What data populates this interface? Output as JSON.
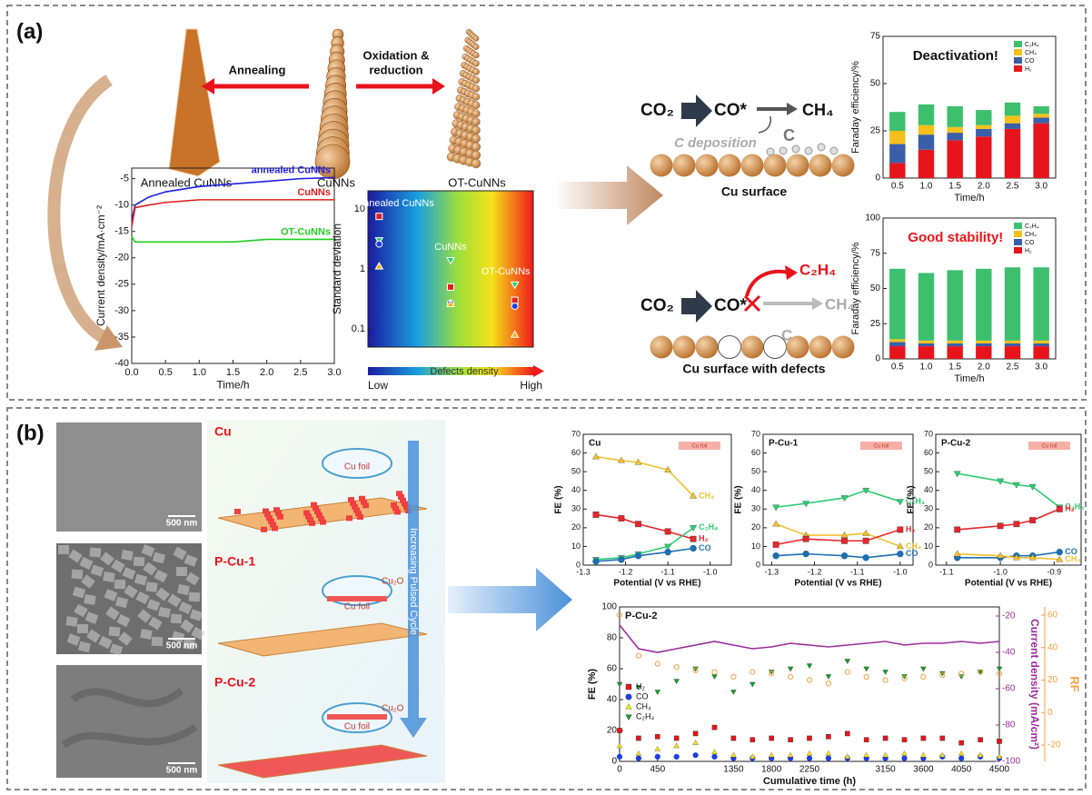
{
  "diagram": {
    "panel_a": "(a)",
    "panel_b": "(b)",
    "annealing": "Annealing",
    "oxidation": [
      "Oxidation &",
      "reduction"
    ],
    "needles": [
      "Annealed CuNNs",
      "CuNNs",
      "OT-CuNNs"
    ],
    "reaction_1": {
      "reactant": "CO₂",
      "intermediate": "CO*",
      "product": "CH₄",
      "deposition": "C deposition",
      "carbon": "C",
      "surface": "Cu surface"
    },
    "reaction_2": {
      "reactant": "CO₂",
      "intermediate": "CO*",
      "product": "C₂H₄",
      "blocked": "CH₄",
      "carbon": "C",
      "surface": "Cu surface with defects"
    },
    "samples": [
      {
        "name": "Cu",
        "scale": "500 nm",
        "foil": "Cu foil"
      },
      {
        "name": "P-Cu-1",
        "scale": "500 nm",
        "foil": "Cu foil",
        "oxide": "Cu₂O"
      },
      {
        "name": "P-Cu-2",
        "scale": "500 nm",
        "foil": "Cu foil",
        "oxide": "Cu₂O"
      }
    ],
    "cycle_arrow": "Increasing Pulsed Cycle"
  },
  "chart_data": [
    {
      "type": "line",
      "x": [
        0,
        0.05,
        0.25,
        0.5,
        1,
        1.5,
        2,
        2.5,
        3
      ],
      "series": [
        {
          "name": "annealed CuNNs",
          "color": "#1f1fe0",
          "values": [
            -13,
            -10,
            -8.5,
            -7.5,
            -6.5,
            -6,
            -5.5,
            -5,
            -4.8
          ]
        },
        {
          "name": "CuNNs",
          "color": "#e01f1f",
          "values": [
            -14,
            -10.5,
            -10,
            -9.5,
            -9,
            -9,
            -9,
            -9,
            -9
          ]
        },
        {
          "name": "OT-CuNNs",
          "color": "#1fd01f",
          "values": [
            -16,
            -17,
            -17,
            -17,
            -17,
            -17,
            -16.5,
            -16.5,
            -16.5
          ]
        }
      ],
      "xlim": [
        0,
        3
      ],
      "xticks": [
        {
          "value": 0,
          "label": "0.0"
        },
        0.5,
        {
          "value": 1,
          "label": "1.0"
        },
        1.5,
        {
          "value": 2,
          "label": "2.0"
        },
        2.5,
        {
          "value": 3,
          "label": "3.0"
        }
      ],
      "ylim": [
        -40,
        -3
      ],
      "yticks": [
        -40,
        -35,
        -30,
        -25,
        -20,
        -15,
        -10,
        -5
      ],
      "x_label": "Time/h",
      "y_label": "Current density/mA·cm⁻²",
      "end_labels": true
    },
    {
      "type": "scatter",
      "categories": [
        "Annealed CuNNs",
        "CuNNs",
        "OT-CuNNs"
      ],
      "log_scale": true,
      "ylim": [
        0.05,
        20
      ],
      "yticks": [
        0.1,
        1,
        10
      ],
      "y_label": "Standard deviation",
      "x_label": "Defects density",
      "x_low": "Low",
      "x_high": "High",
      "series": [
        {
          "marker": "square",
          "color": "#e01f1f",
          "values": [
            7.5,
            0.5,
            0.3
          ]
        },
        {
          "marker": "triangle-down",
          "color": "#2ecc71",
          "values": [
            3,
            1.4,
            0.55
          ]
        },
        {
          "marker": "circle",
          "color": "#1f3fe0",
          "values": [
            2.6,
            0.27,
            0.24
          ]
        },
        {
          "marker": "triangle-up",
          "color": "#f5b21f",
          "values": [
            1.1,
            0.26,
            0.08
          ]
        }
      ]
    },
    {
      "type": "stacked_bar",
      "categories": [
        "0.5",
        "1.0",
        "1.5",
        "2.0",
        "2.5",
        "3.0"
      ],
      "ylim": [
        0,
        75
      ],
      "yticks": [
        0,
        25,
        50,
        75
      ],
      "x_label": "Time/h",
      "y_label": "Faraday efficiency/%",
      "annotation": "Deactivation!",
      "annotation_color": "#111111",
      "legend": "upper right",
      "series": [
        {
          "name": "H₂",
          "color": "#e8141b",
          "values": [
            8,
            15,
            20,
            22,
            26,
            29
          ]
        },
        {
          "name": "CO",
          "color": "#3a5fa8",
          "values": [
            10,
            8,
            4,
            4,
            3,
            3
          ]
        },
        {
          "name": "CH₄",
          "color": "#f5c01a",
          "values": [
            7,
            5,
            3,
            2,
            4,
            2
          ]
        },
        {
          "name": "C₂H₄",
          "color": "#3dbf6e",
          "values": [
            10,
            11,
            11,
            8,
            7,
            4
          ]
        }
      ]
    },
    {
      "type": "stacked_bar",
      "categories": [
        "0.5",
        "1.0",
        "1.5",
        "2.0",
        "2.5",
        "3.0"
      ],
      "ylim": [
        0,
        100
      ],
      "yticks": [
        0,
        25,
        50,
        75,
        100
      ],
      "x_label": "Time/h",
      "y_label": "Faraday efficiency/%",
      "annotation": "Good stability!",
      "annotation_color": "#e8141b",
      "legend": "upper right",
      "series": [
        {
          "name": "H₂",
          "color": "#e8141b",
          "values": [
            9,
            9,
            9,
            9,
            9,
            9
          ]
        },
        {
          "name": "CO",
          "color": "#3a5fa8",
          "values": [
            3,
            2,
            2,
            2,
            2,
            2
          ]
        },
        {
          "name": "CH₄",
          "color": "#f5c01a",
          "values": [
            2,
            2,
            2,
            2,
            2,
            2
          ]
        },
        {
          "name": "C₂H₄",
          "color": "#3dbf6e",
          "values": [
            50,
            48,
            50,
            51,
            52,
            52
          ]
        }
      ]
    },
    {
      "type": "line",
      "panel_label": "Cu",
      "inset_label": "Cu foil",
      "x": [
        -1.27,
        -1.21,
        -1.17,
        -1.1,
        -1.04
      ],
      "xlim": [
        -1.3,
        -0.95
      ],
      "xticks": [
        -1.3,
        -1.2,
        -1.1,
        {
          "value": -1,
          "label": "-1.0"
        }
      ],
      "ylim": [
        0,
        70
      ],
      "yticks": [
        0,
        10,
        20,
        30,
        40,
        50,
        60,
        70
      ],
      "x_label": "Potential (V vs RHE)",
      "y_label": "FE (%)",
      "end_labels": true,
      "series": [
        {
          "name": "CH₄",
          "color": "#f2c12e",
          "marker": "triangle-up",
          "values": [
            58,
            56,
            55,
            51,
            37
          ]
        },
        {
          "name": "H₂",
          "color": "#e8262b",
          "marker": "square",
          "values": [
            27,
            25,
            22,
            18,
            14
          ]
        },
        {
          "name": "C₂H₄",
          "color": "#2ecc71",
          "marker": "triangle-down",
          "values": [
            3,
            4,
            6,
            10,
            20
          ]
        },
        {
          "name": "CO",
          "color": "#1f6fb0",
          "marker": "circle",
          "values": [
            2,
            3,
            5,
            7,
            9
          ]
        }
      ]
    },
    {
      "type": "line",
      "panel_label": "P-Cu-1",
      "inset_label": "Cu foil",
      "x": [
        -1.29,
        -1.22,
        -1.13,
        -1.08,
        -1.0
      ],
      "xlim": [
        -1.32,
        -0.97
      ],
      "xticks": [
        -1.3,
        -1.2,
        -1.1,
        {
          "value": -1,
          "label": "-1.0"
        }
      ],
      "ylim": [
        0,
        70
      ],
      "yticks": [
        0,
        10,
        20,
        30,
        40,
        50,
        60,
        70
      ],
      "x_label": "Potential (V vs RHE)",
      "y_label": "FE (%)",
      "end_labels": true,
      "series": [
        {
          "name": "C₂H₄",
          "color": "#2ecc71",
          "marker": "triangle-down",
          "values": [
            31,
            33,
            36,
            40,
            34
          ]
        },
        {
          "name": "CH₄",
          "color": "#f2c12e",
          "marker": "triangle-up",
          "values": [
            22,
            16,
            16,
            17,
            10
          ]
        },
        {
          "name": "H₂",
          "color": "#e8262b",
          "marker": "square",
          "values": [
            11,
            14,
            13,
            13,
            19
          ]
        },
        {
          "name": "CO",
          "color": "#1f6fb0",
          "marker": "circle",
          "values": [
            5,
            6,
            5,
            4,
            6
          ]
        }
      ]
    },
    {
      "type": "line",
      "panel_label": "P-Cu-2",
      "inset_label": "Cu foil",
      "x": [
        -1.08,
        -1.0,
        -0.97,
        -0.94,
        -0.89
      ],
      "xlim": [
        -1.12,
        -0.85
      ],
      "xticks": [
        -1.1,
        {
          "value": -1,
          "label": "-1.0"
        },
        -0.9
      ],
      "ylim": [
        0,
        70
      ],
      "yticks": [
        0,
        10,
        20,
        30,
        40,
        50,
        60,
        70
      ],
      "x_label": "Potential (V vs RHE)",
      "y_label": "FE (%)",
      "end_labels": true,
      "series": [
        {
          "name": "C₂H₄",
          "color": "#2ecc71",
          "marker": "triangle-down",
          "values": [
            49,
            45,
            43,
            42,
            31
          ]
        },
        {
          "name": "H₂",
          "color": "#e8262b",
          "marker": "square",
          "values": [
            19,
            21,
            22,
            24,
            30
          ]
        },
        {
          "name": "CO",
          "color": "#1f6fb0",
          "marker": "circle",
          "values": [
            4,
            4,
            5,
            5,
            7
          ]
        },
        {
          "name": "CH₄",
          "color": "#f2c12e",
          "marker": "triangle-up",
          "values": [
            6,
            5,
            4,
            4,
            3
          ]
        }
      ]
    },
    {
      "type": "line",
      "panel_label": "P-Cu-2",
      "x": [
        0,
        225,
        450,
        675,
        900,
        1125,
        1350,
        1575,
        1800,
        2025,
        2250,
        2475,
        2700,
        2925,
        3150,
        3375,
        3600,
        3825,
        4050,
        4275,
        4500
      ],
      "xlim": [
        0,
        4500
      ],
      "xticks": [
        0,
        450,
        1350,
        1800,
        2250,
        3150,
        3600,
        4050,
        4500
      ],
      "ylim": [
        0,
        100
      ],
      "yticks": [
        0,
        20,
        40,
        60,
        80,
        100
      ],
      "y2lim": [
        -100,
        -15
      ],
      "y2ticks": [
        -100,
        -80,
        -60,
        -40,
        -20
      ],
      "y3lim": [
        -30,
        65
      ],
      "y3ticks": [
        -20,
        0,
        20,
        40,
        60
      ],
      "x_label": "Cumulative time (h)",
      "y_label": "FE (%)",
      "y2_label": "Current density (mA/cm²)",
      "y3_label": "RF",
      "legend": "left",
      "series": [
        {
          "name": "H₂",
          "color": "#e8141b",
          "marker": "square",
          "line": false,
          "values": [
            20,
            15,
            16,
            15,
            18,
            22,
            15,
            14,
            15,
            14,
            15,
            16,
            18,
            14,
            15,
            14,
            15,
            15,
            12,
            14,
            13
          ]
        },
        {
          "name": "CO",
          "color": "#1f3fe0",
          "marker": "circle",
          "line": false,
          "values": [
            3,
            2,
            3,
            3,
            4,
            3,
            2,
            2,
            2,
            2,
            2,
            2,
            2,
            2,
            2,
            2,
            2,
            3,
            2,
            3,
            2
          ]
        },
        {
          "name": "CH₄",
          "color": "#f5e11a",
          "marker": "triangle-up",
          "line": false,
          "values": [
            10,
            5,
            8,
            10,
            12,
            6,
            4,
            3,
            4,
            4,
            5,
            5,
            3,
            4,
            4,
            5,
            4,
            4,
            5,
            4,
            3
          ]
        },
        {
          "name": "C₂H₄",
          "color": "#1a9a2a",
          "marker": "triangle-down",
          "line": false,
          "values": [
            50,
            48,
            45,
            52,
            60,
            55,
            45,
            50,
            58,
            60,
            62,
            55,
            65,
            60,
            58,
            55,
            60,
            57,
            55,
            58,
            60
          ]
        },
        {
          "axis": "y2",
          "color": "#9b2c9b",
          "values": [
            -25,
            -38,
            -40,
            -38,
            -36,
            -34,
            -36,
            -38,
            -37,
            -35,
            -36,
            -37,
            -36,
            -35,
            -34,
            -36,
            -35,
            -35,
            -34,
            -35,
            -34
          ]
        },
        {
          "axis": "y3",
          "color": "#f0a040",
          "marker": "open-circle",
          "line": false,
          "values": [
            60,
            35,
            30,
            28,
            26,
            25,
            22,
            25,
            24,
            22,
            20,
            18,
            25,
            22,
            20,
            21,
            22,
            23,
            24,
            25,
            24
          ]
        }
      ]
    }
  ]
}
